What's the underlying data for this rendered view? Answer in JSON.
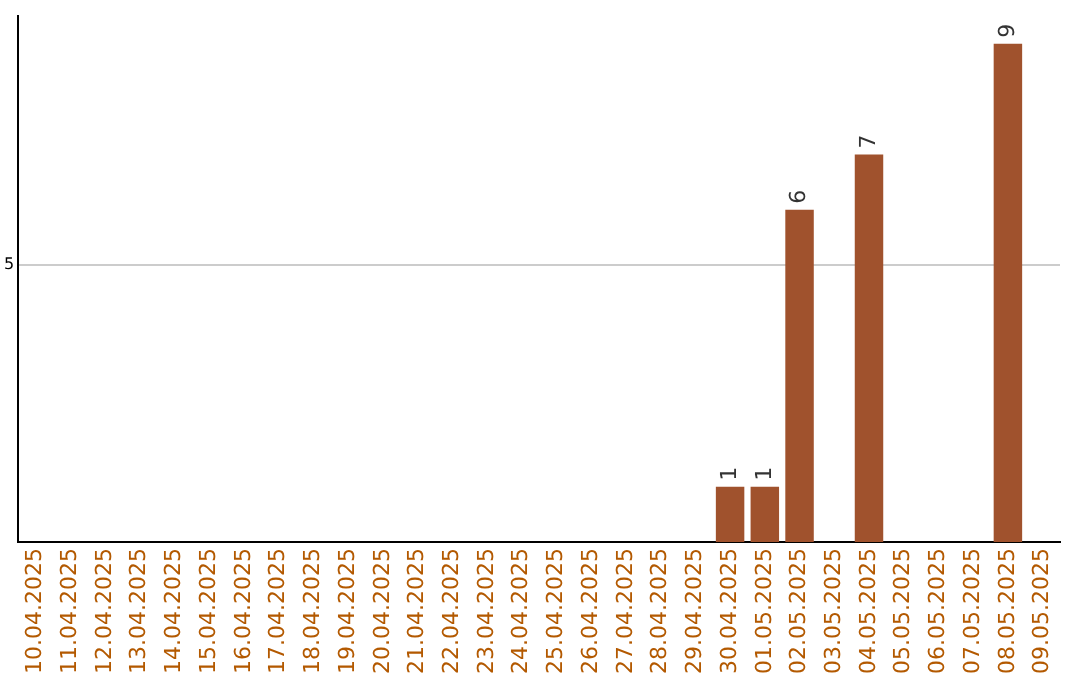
{
  "chart_data": {
    "type": "bar",
    "categories": [
      "10.04.2025",
      "11.04.2025",
      "12.04.2025",
      "13.04.2025",
      "14.04.2025",
      "15.04.2025",
      "16.04.2025",
      "17.04.2025",
      "18.04.2025",
      "19.04.2025",
      "20.04.2025",
      "21.04.2025",
      "22.04.2025",
      "23.04.2025",
      "24.04.2025",
      "25.04.2025",
      "26.04.2025",
      "27.04.2025",
      "28.04.2025",
      "29.04.2025",
      "30.04.2025",
      "01.05.2025",
      "02.05.2025",
      "03.05.2025",
      "04.05.2025",
      "05.05.2025",
      "06.05.2025",
      "07.05.2025",
      "08.05.2025",
      "09.05.2025"
    ],
    "values": [
      null,
      null,
      null,
      null,
      null,
      null,
      null,
      null,
      null,
      null,
      null,
      null,
      null,
      null,
      null,
      null,
      null,
      null,
      null,
      null,
      1,
      1,
      6,
      null,
      7,
      null,
      null,
      null,
      9,
      null
    ],
    "color": "#a0522d",
    "ylim": [
      0,
      9.5
    ],
    "yticks": [
      5
    ],
    "grid": "y",
    "data_labels": true
  }
}
